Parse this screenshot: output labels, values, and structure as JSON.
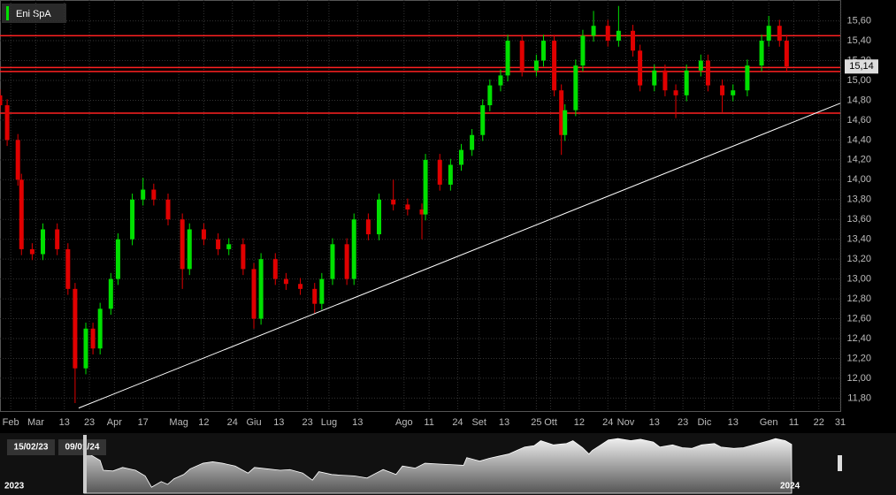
{
  "chart_data": {
    "type": "candlestick",
    "title": "Eni SpA",
    "x": [
      0,
      2,
      5,
      6,
      9,
      12,
      16,
      19,
      21,
      24,
      26,
      28,
      31,
      33,
      37,
      40,
      43,
      47,
      51,
      53,
      57,
      61,
      64,
      68,
      71,
      73,
      77,
      80,
      84,
      88,
      90,
      93,
      97,
      99,
      103,
      106,
      110,
      114,
      118,
      119,
      123,
      126,
      129,
      132,
      135,
      137,
      140,
      142,
      146,
      150,
      152,
      155,
      157,
      158,
      161,
      163,
      166,
      170,
      173,
      177,
      179,
      183,
      186,
      189,
      192,
      196,
      198,
      202,
      205,
      209,
      213,
      215,
      218,
      220
    ],
    "open": [
      14.85,
      14.75,
      14.4,
      14.0,
      13.3,
      13.25,
      13.5,
      13.3,
      12.9,
      12.1,
      12.5,
      12.3,
      12.7,
      13.0,
      13.4,
      13.8,
      13.9,
      13.8,
      13.6,
      13.1,
      13.5,
      13.4,
      13.3,
      13.35,
      13.1,
      12.6,
      13.2,
      13.0,
      12.95,
      12.9,
      12.75,
      13.0,
      13.35,
      13.0,
      13.6,
      13.45,
      13.8,
      13.75,
      13.7,
      13.65,
      14.2,
      13.95,
      14.15,
      14.3,
      14.45,
      14.75,
      14.95,
      15.05,
      15.4,
      15.1,
      15.2,
      15.4,
      14.9,
      14.45,
      14.7,
      15.15,
      15.45,
      15.55,
      15.4,
      15.5,
      15.3,
      14.95,
      15.1,
      14.9,
      14.85,
      15.1,
      15.2,
      14.95,
      14.85,
      14.9,
      15.15,
      15.4,
      15.55,
      15.4
    ],
    "high": [
      14.91,
      14.81,
      14.46,
      14.06,
      13.36,
      13.56,
      13.56,
      13.36,
      12.96,
      12.56,
      12.56,
      12.76,
      13.06,
      13.46,
      13.86,
      14.02,
      13.96,
      13.86,
      13.66,
      13.56,
      13.56,
      13.46,
      13.41,
      13.41,
      13.16,
      13.26,
      13.26,
      13.06,
      13.01,
      12.96,
      13.06,
      13.41,
      13.41,
      13.66,
      13.66,
      13.86,
      14.0,
      13.81,
      13.76,
      14.26,
      14.26,
      14.21,
      14.36,
      14.51,
      14.81,
      15.01,
      15.11,
      15.46,
      15.46,
      15.26,
      15.46,
      15.46,
      14.96,
      14.76,
      15.21,
      15.51,
      15.7,
      15.61,
      15.75,
      15.56,
      15.36,
      15.16,
      15.16,
      14.96,
      15.16,
      15.26,
      15.26,
      15.01,
      14.96,
      15.21,
      15.46,
      15.65,
      15.61,
      15.46
    ],
    "low": [
      14.69,
      14.34,
      13.94,
      13.24,
      13.19,
      13.19,
      13.24,
      12.84,
      11.75,
      12.04,
      12.24,
      12.24,
      12.64,
      12.94,
      13.34,
      13.74,
      13.74,
      13.54,
      12.9,
      13.04,
      13.34,
      13.24,
      13.24,
      13.04,
      12.5,
      12.54,
      12.94,
      12.89,
      12.84,
      12.65,
      12.69,
      12.94,
      12.94,
      12.94,
      13.39,
      13.39,
      13.69,
      13.64,
      13.4,
      13.59,
      13.89,
      13.89,
      14.09,
      14.24,
      14.39,
      14.69,
      14.89,
      14.99,
      15.04,
      15.04,
      15.14,
      14.84,
      14.25,
      14.39,
      14.64,
      15.09,
      15.39,
      15.34,
      15.34,
      15.24,
      14.89,
      14.89,
      14.84,
      14.62,
      14.79,
      15.04,
      14.89,
      14.68,
      14.79,
      14.84,
      15.09,
      15.34,
      15.34,
      15.08
    ],
    "close": [
      14.75,
      14.4,
      14.0,
      13.3,
      13.25,
      13.5,
      13.3,
      12.9,
      12.1,
      12.5,
      12.3,
      12.7,
      13.0,
      13.4,
      13.8,
      13.9,
      13.8,
      13.6,
      13.1,
      13.5,
      13.4,
      13.3,
      13.35,
      13.1,
      12.6,
      13.2,
      13.0,
      12.95,
      12.9,
      12.75,
      13.0,
      13.35,
      13.0,
      13.6,
      13.45,
      13.8,
      13.75,
      13.7,
      13.65,
      14.2,
      13.95,
      14.15,
      14.3,
      14.45,
      14.75,
      14.95,
      15.05,
      15.4,
      15.1,
      15.2,
      15.4,
      14.9,
      14.45,
      14.7,
      15.15,
      15.45,
      15.55,
      15.4,
      15.5,
      15.3,
      14.95,
      15.1,
      14.9,
      14.85,
      15.1,
      15.2,
      14.95,
      14.85,
      14.9,
      15.15,
      15.4,
      15.55,
      15.4,
      15.14
    ],
    "up_color": "#00e000",
    "down_color": "#e00000",
    "xlim": [
      0,
      235
    ],
    "ylim": [
      11.67,
      15.81
    ],
    "xticks": [
      {
        "value": 3,
        "label": "Feb"
      },
      {
        "value": 10,
        "label": "Mar"
      },
      {
        "value": 18,
        "label": "13"
      },
      {
        "value": 25,
        "label": "23"
      },
      {
        "value": 32,
        "label": "Apr"
      },
      {
        "value": 40,
        "label": "17"
      },
      {
        "value": 50,
        "label": "Mag"
      },
      {
        "value": 57,
        "label": "12"
      },
      {
        "value": 65,
        "label": "24"
      },
      {
        "value": 71,
        "label": "Giu"
      },
      {
        "value": 78,
        "label": "13"
      },
      {
        "value": 86,
        "label": "23"
      },
      {
        "value": 92,
        "label": "Lug"
      },
      {
        "value": 100,
        "label": "13"
      },
      {
        "value": 113,
        "label": "Ago"
      },
      {
        "value": 120,
        "label": "11"
      },
      {
        "value": 128,
        "label": "24"
      },
      {
        "value": 134,
        "label": "Set"
      },
      {
        "value": 141,
        "label": "13"
      },
      {
        "value": 150,
        "label": "25"
      },
      {
        "value": 154,
        "label": "Ott"
      },
      {
        "value": 162,
        "label": "12"
      },
      {
        "value": 170,
        "label": "24"
      },
      {
        "value": 175,
        "label": "Nov"
      },
      {
        "value": 183,
        "label": "13"
      },
      {
        "value": 191,
        "label": "23"
      },
      {
        "value": 197,
        "label": "Dic"
      },
      {
        "value": 205,
        "label": "13"
      },
      {
        "value": 215,
        "label": "Gen"
      },
      {
        "value": 222,
        "label": "11"
      },
      {
        "value": 229,
        "label": "22"
      },
      {
        "value": 235,
        "label": "31"
      }
    ],
    "yticks": [
      {
        "value": 11.8,
        "label": "11,80"
      },
      {
        "value": 12.0,
        "label": "12,00"
      },
      {
        "value": 12.2,
        "label": "12,20"
      },
      {
        "value": 12.4,
        "label": "12,40"
      },
      {
        "value": 12.6,
        "label": "12,60"
      },
      {
        "value": 12.8,
        "label": "12,80"
      },
      {
        "value": 13.0,
        "label": "13,00"
      },
      {
        "value": 13.2,
        "label": "13,20"
      },
      {
        "value": 13.4,
        "label": "13,40"
      },
      {
        "value": 13.6,
        "label": "13,60"
      },
      {
        "value": 13.8,
        "label": "13,80"
      },
      {
        "value": 14.0,
        "label": "14,00"
      },
      {
        "value": 14.2,
        "label": "14,20"
      },
      {
        "value": 14.4,
        "label": "14,40"
      },
      {
        "value": 14.6,
        "label": "14,60"
      },
      {
        "value": 14.8,
        "label": "14,80"
      },
      {
        "value": 15.0,
        "label": "15,00"
      },
      {
        "value": 15.2,
        "label": "15,20"
      },
      {
        "value": 15.4,
        "label": "15,40"
      },
      {
        "value": 15.6,
        "label": "15,60"
      }
    ],
    "grid": true,
    "hlines": [
      15.45,
      15.13,
      15.09,
      14.67
    ],
    "hline_color": "#ff2020",
    "trendline": {
      "x": [
        22,
        235
      ],
      "y": [
        11.7,
        14.77
      ],
      "color": "#ffffff"
    },
    "last": {
      "value": 15.14,
      "label": "15,14"
    },
    "navigator": {
      "start_label": "15/02/23",
      "end_label": "09/01/24",
      "left_year": "2023",
      "right_year": "2024"
    }
  }
}
